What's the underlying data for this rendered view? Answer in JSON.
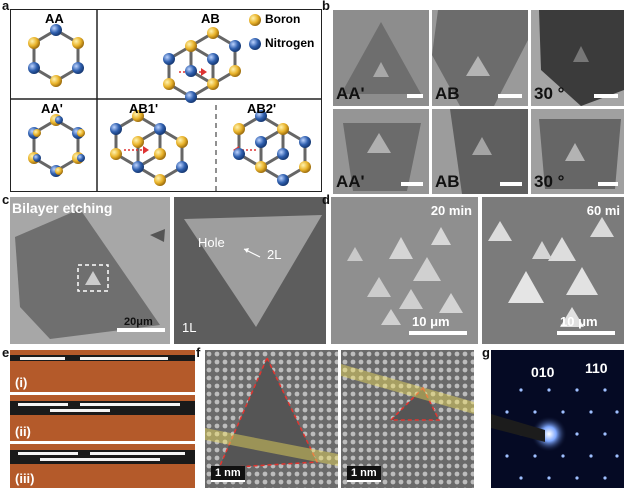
{
  "panel_labels": {
    "a": "a",
    "b": "b",
    "c": "c",
    "d": "d",
    "e": "e",
    "f": "f",
    "g": "g"
  },
  "panel_a": {
    "stackings": [
      "AA",
      "AB",
      "AA'",
      "AB1'",
      "AB2'"
    ],
    "legend": [
      {
        "label": "Boron",
        "color": "#e9b32a"
      },
      {
        "label": "Nitrogen",
        "color": "#2f5fae"
      }
    ]
  },
  "panel_b": {
    "labels_top": [
      "AA'",
      "AB",
      "30 °"
    ],
    "labels_bottom": [
      "AA'",
      "AB",
      "30 °"
    ]
  },
  "panel_c": {
    "left_title": "Bilayer etching",
    "left_scale": "20μm",
    "right_labels": {
      "hole": "Hole",
      "twoL": "2L",
      "oneL": "1L"
    }
  },
  "panel_d": {
    "left_time": "20 min",
    "right_time": "60 mi",
    "left_scale": "10 μm",
    "right_scale": "10 μm"
  },
  "panel_e": {
    "rows": [
      "(i)",
      "(ii)",
      "(iii)"
    ]
  },
  "panel_f": {
    "left_scale": "1 nm",
    "right_scale": "1 nm"
  },
  "panel_g": {
    "spot1": "010",
    "spot2": "110"
  },
  "colors": {
    "boron": "#e9b32a",
    "nitrogen": "#2f5fae",
    "film": "#b45a2a",
    "highlight_red": "#e3342f",
    "band_yellow": "#f1e05a"
  }
}
